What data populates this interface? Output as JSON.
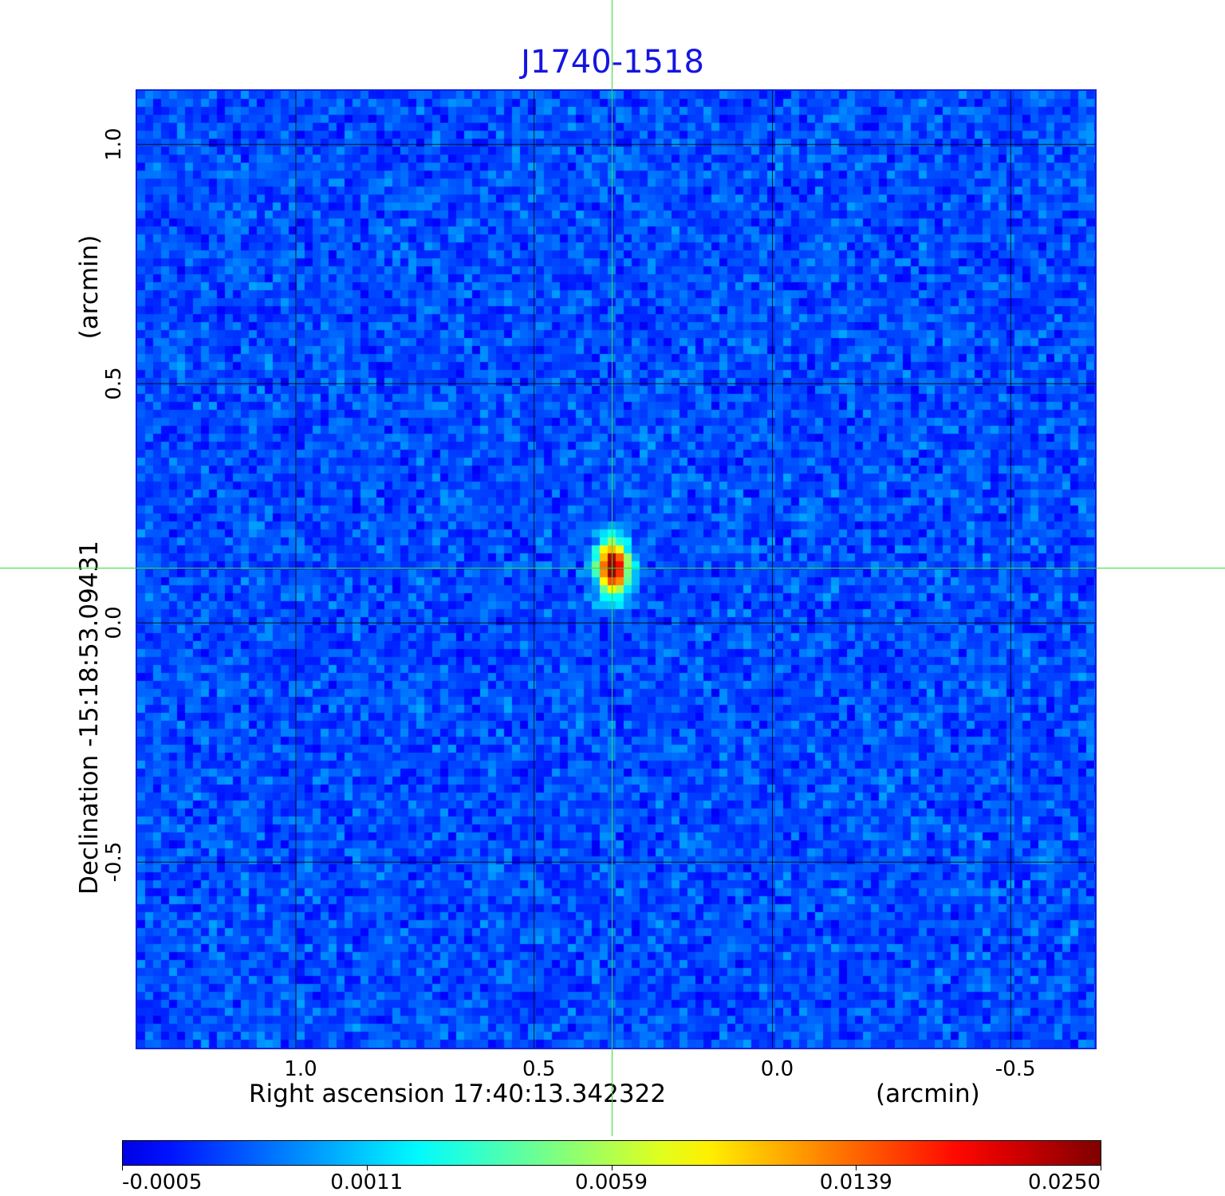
{
  "chart_data": {
    "type": "heatmap",
    "title": "J1740-1518",
    "xlabel": "Right ascension  17:40:13.342322",
    "xunit": "(arcmin)",
    "ylabel": "Declination  -15:18:53.09431",
    "yunit": "(arcmin)",
    "x_ticks": [
      "1.0",
      "0.5",
      "0.0",
      "-0.5"
    ],
    "x_tick_values": [
      1.0,
      0.5,
      0.0,
      -0.5
    ],
    "y_ticks": [
      "1.0",
      "0.5",
      "0.0",
      "-0.5"
    ],
    "y_tick_values": [
      1.0,
      0.5,
      0.0,
      -0.5
    ],
    "xlim": [
      1.333,
      -0.677
    ],
    "ylim": [
      -0.888,
      1.112
    ],
    "grid": true,
    "colormap": "jet",
    "colorbar": {
      "ticks": [
        "-0.0005",
        "0.0011",
        "0.0059",
        "0.0139",
        "0.0250"
      ],
      "range": [
        -0.0005,
        0.025
      ],
      "placement": "bottom"
    },
    "background_level": 0.0003,
    "source": {
      "x": 0.334,
      "y": 0.115,
      "peak": 0.025
    },
    "crosshair": {
      "x": 0.334,
      "y": 0.115,
      "color": "#33dd33"
    },
    "frame_color": "#1020e0",
    "title_color": "#1515e0"
  }
}
